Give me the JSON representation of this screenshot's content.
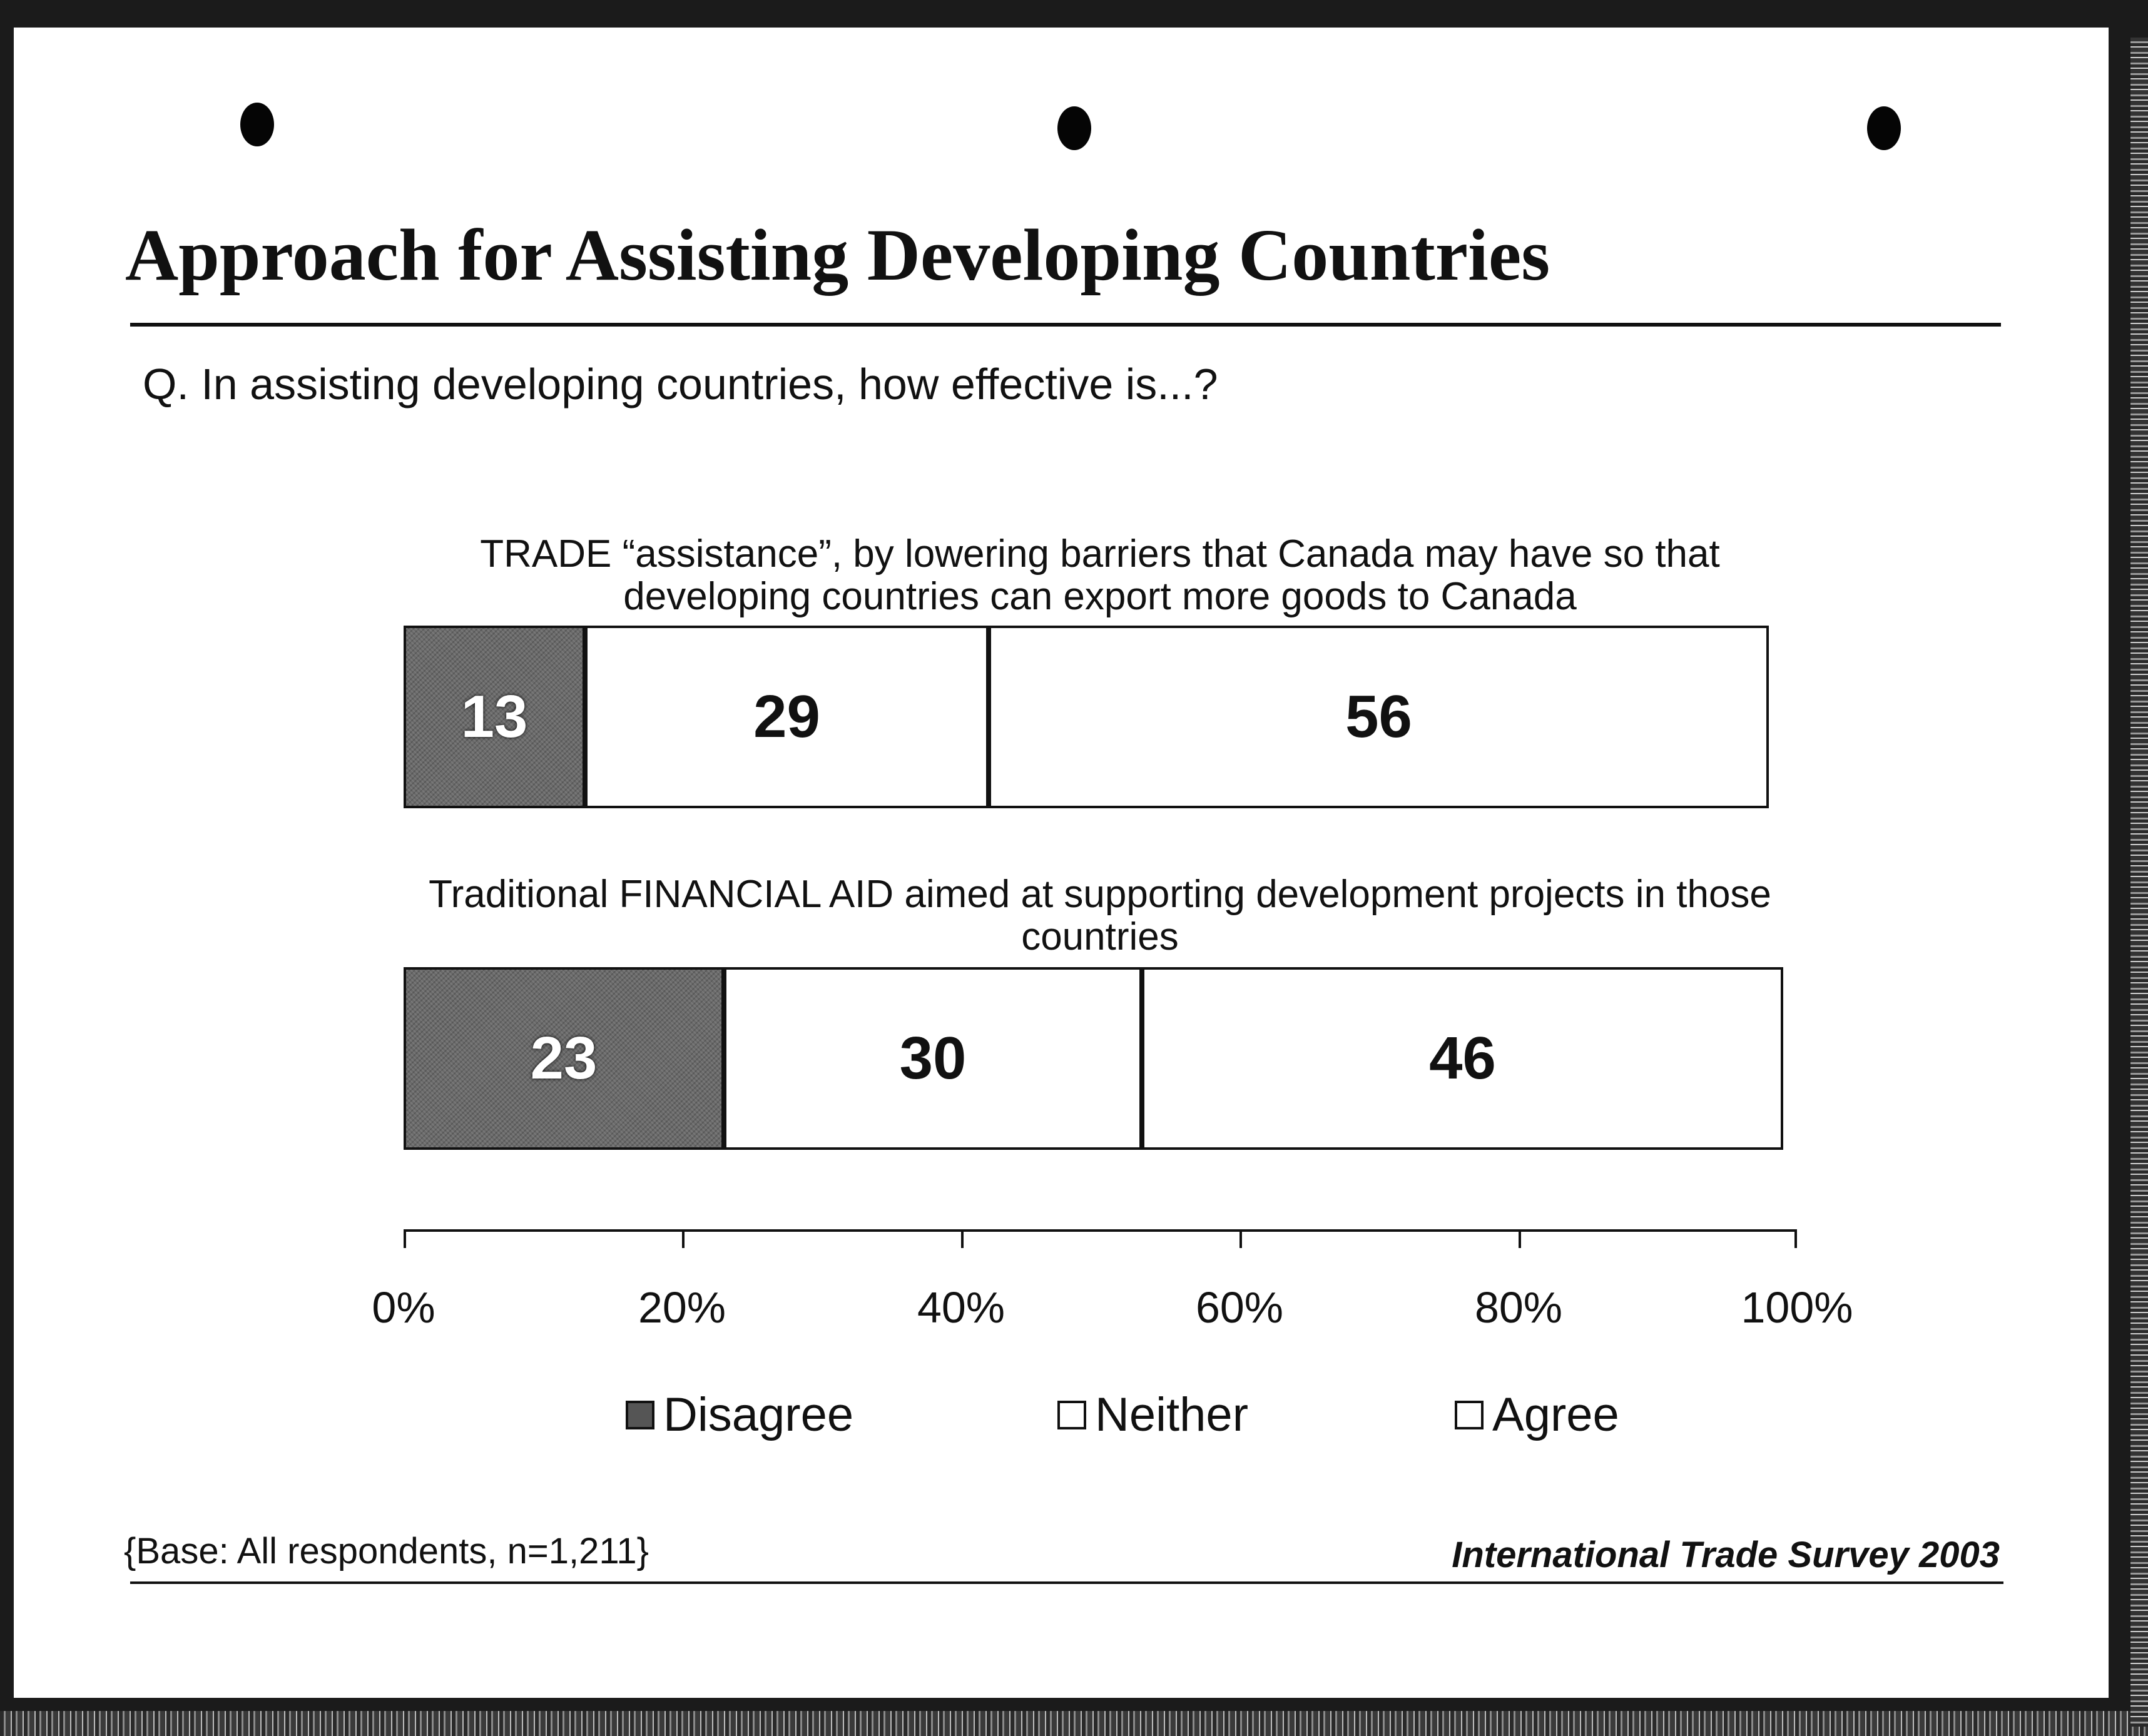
{
  "title": "Approach for Assisting Developing Countries",
  "question": "Q. In assisting developing countries, how effective is...?",
  "statements": {
    "trade": {
      "line1": "TRADE “assistance”, by lowering barriers that Canada may have so that",
      "line2": "developing countries can export more goods to Canada"
    },
    "aid": {
      "line1": "Traditional FINANCIAL AID aimed at supporting development projects in those",
      "line2": "countries"
    }
  },
  "legend": {
    "disagree": "Disagree",
    "neither": "Neither",
    "agree": "Agree"
  },
  "axis": {
    "ticks": [
      "0%",
      "20%",
      "40%",
      "60%",
      "80%",
      "100%"
    ]
  },
  "footer": {
    "base": "{Base: All respondents, n=1,211}",
    "source": "International Trade Survey 2003"
  },
  "colors": {
    "disagree": "#555555",
    "neither": "#ffffff",
    "agree": "#ffffff",
    "ink": "#111111"
  },
  "chart_data": {
    "type": "bar",
    "orientation": "horizontal",
    "stacked": true,
    "categories": [
      "TRADE “assistance”, by lowering barriers that Canada may have so that developing countries can export more goods to Canada",
      "Traditional FINANCIAL AID aimed at supporting development projects in those countries"
    ],
    "series": [
      {
        "name": "Disagree",
        "values": [
          13,
          23
        ]
      },
      {
        "name": "Neither",
        "values": [
          29,
          30
        ]
      },
      {
        "name": "Agree",
        "values": [
          56,
          46
        ]
      }
    ],
    "xlim": [
      0,
      100
    ],
    "xlabel": "",
    "ylabel": "",
    "grid": false,
    "legend_position": "bottom"
  }
}
